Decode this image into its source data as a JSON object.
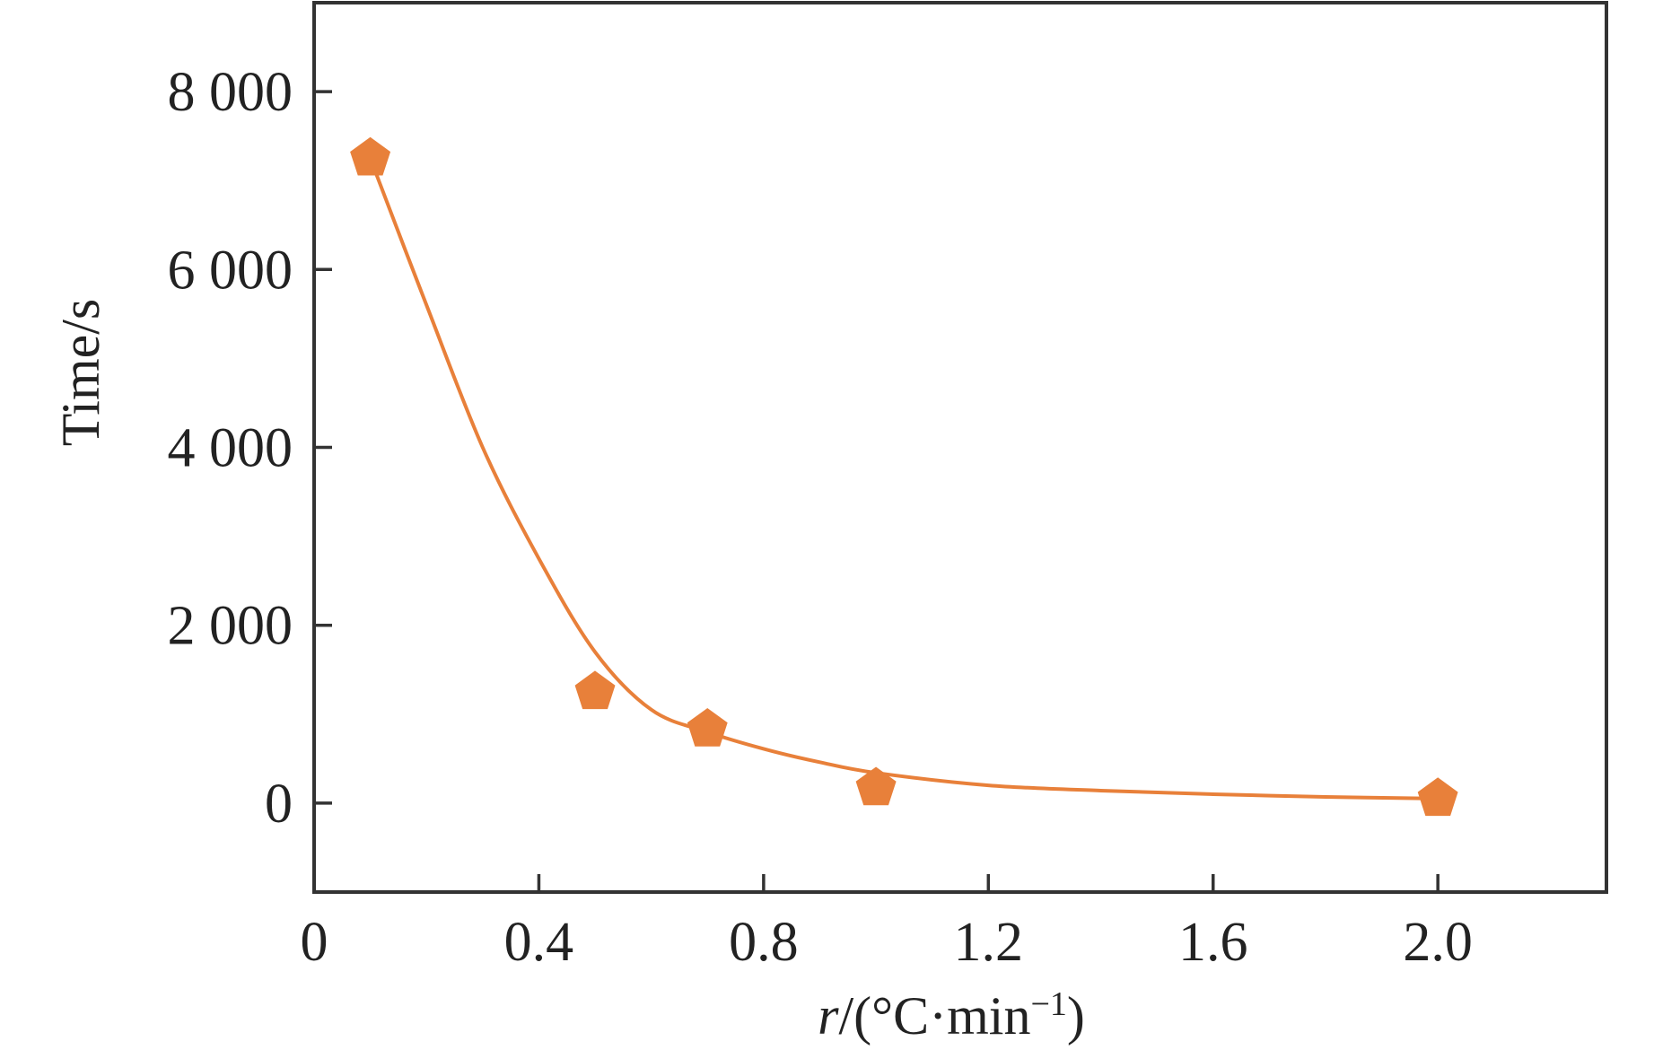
{
  "chart_data": {
    "type": "scatter",
    "title": "",
    "xlabel": {
      "var": "r",
      "unit_prefix": "/(°C·min",
      "unit_sup": "−1",
      "unit_suffix": ")"
    },
    "ylabel": "Time/s",
    "xlim": [
      0,
      2.3
    ],
    "ylim": [
      -1000,
      9000
    ],
    "xticks": [
      0,
      0.4,
      0.8,
      1.2,
      1.6,
      2.0
    ],
    "xtick_labels": [
      "0",
      "0.4",
      "0.8",
      "1.2",
      "1.6",
      "2.0"
    ],
    "yticks": [
      0,
      2000,
      4000,
      6000,
      8000
    ],
    "ytick_labels": [
      "0",
      "2 000",
      "4 000",
      "6 000",
      "8 000"
    ],
    "grid": false,
    "legend": "none",
    "marker": "pentagon",
    "color": "#E8803A",
    "series": [
      {
        "points": [
          {
            "x": 0.1,
            "y": 7250
          },
          {
            "x": 0.5,
            "y": 1250
          },
          {
            "x": 0.7,
            "y": 830
          },
          {
            "x": 1.0,
            "y": 170
          },
          {
            "x": 2.0,
            "y": 50
          }
        ]
      }
    ],
    "fit_curve": {
      "x": [
        0.1,
        0.2,
        0.3,
        0.4,
        0.5,
        0.6,
        0.7,
        0.8,
        0.9,
        1.0,
        1.2,
        1.4,
        1.6,
        1.8,
        2.0
      ],
      "y": [
        7250,
        5600,
        4000,
        2750,
        1700,
        1050,
        800,
        610,
        460,
        340,
        200,
        140,
        100,
        70,
        50
      ]
    }
  }
}
